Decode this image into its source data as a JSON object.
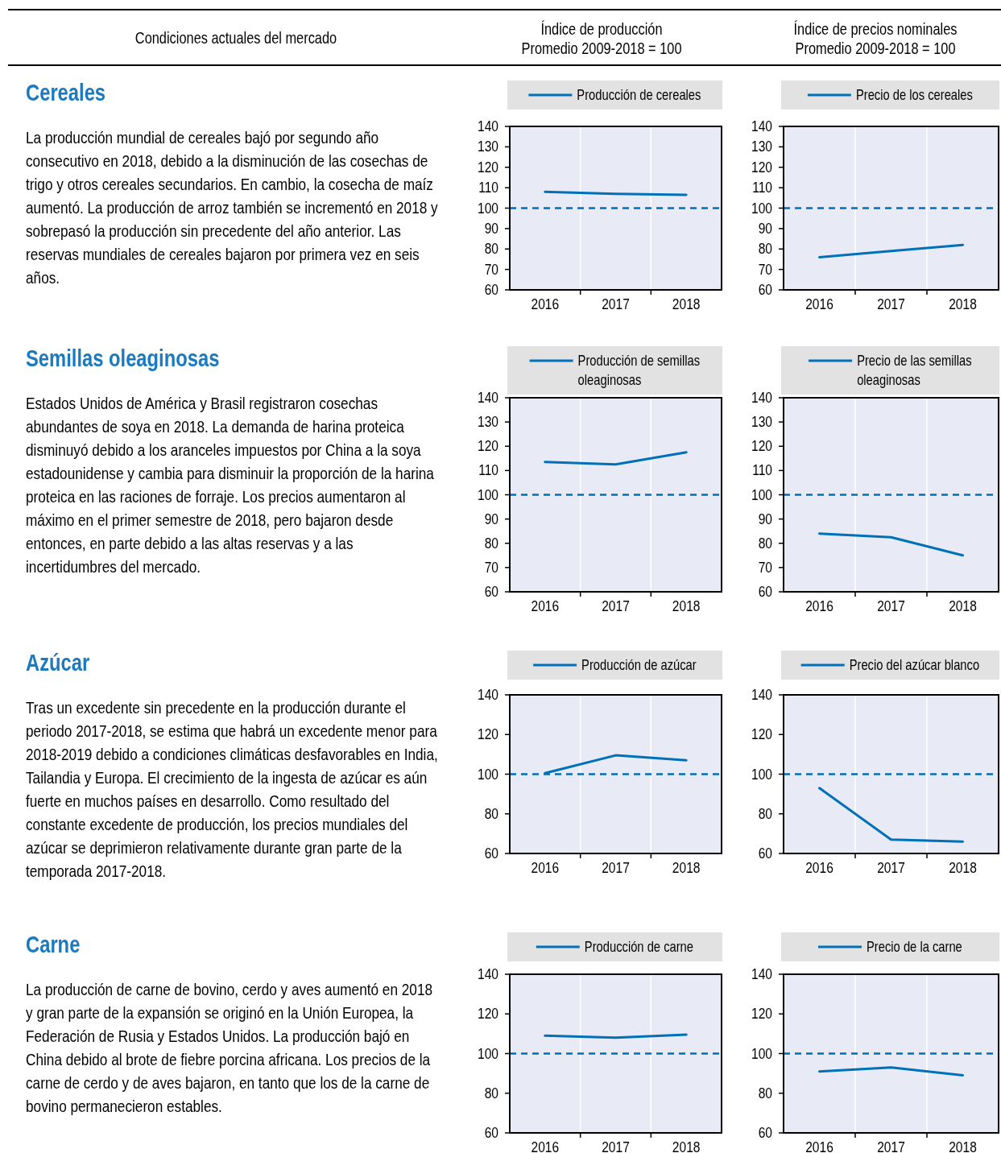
{
  "chart_data": [
    {
      "type": "other",
      "annotations": [
        "Condiciones actuales del mercado",
        "Índice de producción",
        "Promedio 2009-2018 = 100",
        "Índice de precios nominales",
        "Promedio 2009-2018 = 100"
      ]
    },
    {
      "type": "other",
      "title": "Cereales",
      "annotations": [
        "La producción mundial de cereales bajó por segundo año consecutivo en 2018, debido a la disminución de las cosechas de trigo y otros cereales secundarios. En cambio, la cosecha de maíz aumentó. La producción de arroz también se incrementó en 2018 y sobrepasó la producción sin precedente del año anterior. Las reservas mundiales de cereales bajaron por primera vez en seis años."
      ]
    },
    {
      "type": "line",
      "categories": [
        "2016",
        "2017",
        "2018"
      ],
      "series": [
        {
          "name": "Producción de cereales",
          "color": "#0070b8",
          "values": [
            108,
            107,
            106.5
          ]
        }
      ],
      "ylim": [
        60,
        140
      ],
      "yticks": [
        60,
        70,
        80,
        90,
        100,
        110,
        120,
        130,
        140
      ],
      "grid": "x",
      "legend": "top",
      "ref_lines": [
        {
          "axis": "y",
          "value": 100,
          "color": "#0070b8",
          "line_style": "dashed"
        }
      ]
    },
    {
      "type": "line",
      "categories": [
        "2016",
        "2017",
        "2018"
      ],
      "series": [
        {
          "name": "Precio de los cereales",
          "color": "#0070b8",
          "values": [
            76,
            79,
            82
          ]
        }
      ],
      "ylim": [
        60,
        140
      ],
      "yticks": [
        60,
        70,
        80,
        90,
        100,
        110,
        120,
        130,
        140
      ],
      "grid": "x",
      "legend": "top",
      "ref_lines": [
        {
          "axis": "y",
          "value": 100,
          "color": "#0070b8",
          "line_style": "dashed"
        }
      ]
    },
    {
      "type": "other",
      "title": "Semillas oleaginosas",
      "annotations": [
        "Estados Unidos de América y Brasil registraron cosechas abundantes de soya en 2018. La demanda de harina proteica disminuyó debido a los aranceles impuestos por China a la soya estadounidense y cambia para disminuir la proporción de la harina proteica en las raciones de forraje. Los precios aumentaron al máximo en el primer semestre de 2018, pero bajaron desde entonces, en parte debido a las altas reservas y a las incertidumbres del mercado."
      ]
    },
    {
      "type": "line",
      "categories": [
        "2016",
        "2017",
        "2018"
      ],
      "series": [
        {
          "name": "Producción de semillas oleaginosas",
          "color": "#0070b8",
          "values": [
            113.5,
            112.5,
            117.5
          ]
        }
      ],
      "ylim": [
        60,
        140
      ],
      "yticks": [
        60,
        70,
        80,
        90,
        100,
        110,
        120,
        130,
        140
      ],
      "grid": "x",
      "legend": "top",
      "ref_lines": [
        {
          "axis": "y",
          "value": 100,
          "color": "#0070b8",
          "line_style": "dashed"
        }
      ]
    },
    {
      "type": "line",
      "categories": [
        "2016",
        "2017",
        "2018"
      ],
      "series": [
        {
          "name": "Precio de las semillas oleaginosas",
          "color": "#0070b8",
          "values": [
            84,
            82.5,
            75
          ]
        }
      ],
      "ylim": [
        60,
        140
      ],
      "yticks": [
        60,
        70,
        80,
        90,
        100,
        110,
        120,
        130,
        140
      ],
      "grid": "x",
      "legend": "top",
      "ref_lines": [
        {
          "axis": "y",
          "value": 100,
          "color": "#0070b8",
          "line_style": "dashed"
        }
      ]
    },
    {
      "type": "other",
      "title": "Azúcar",
      "annotations": [
        "Tras un excedente sin precedente en la producción durante el periodo 2017-2018, se estima que habrá un excedente menor para 2018-2019 debido a condiciones climáticas desfavorables en India, Tailandia y Europa. El crecimiento de la ingesta de azúcar es aún fuerte en muchos países en desarrollo. Como resultado del constante excedente de producción, los precios mundiales del azúcar se deprimieron relativamente durante gran parte de la temporada 2017-2018."
      ]
    },
    {
      "type": "line",
      "categories": [
        "2016",
        "2017",
        "2018"
      ],
      "series": [
        {
          "name": "Producción de azúcar",
          "color": "#0070b8",
          "values": [
            100.5,
            109.5,
            107
          ]
        }
      ],
      "ylim": [
        60,
        140
      ],
      "yticks": [
        60,
        80,
        100,
        120,
        140
      ],
      "grid": "x",
      "legend": "top",
      "ref_lines": [
        {
          "axis": "y",
          "value": 100,
          "color": "#0070b8",
          "line_style": "dashed"
        }
      ]
    },
    {
      "type": "line",
      "categories": [
        "2016",
        "2017",
        "2018"
      ],
      "series": [
        {
          "name": "Precio del azúcar blanco",
          "color": "#0070b8",
          "values": [
            93,
            67,
            66
          ]
        }
      ],
      "ylim": [
        60,
        140
      ],
      "yticks": [
        60,
        80,
        100,
        120,
        140
      ],
      "grid": "x",
      "legend": "top",
      "ref_lines": [
        {
          "axis": "y",
          "value": 100,
          "color": "#0070b8",
          "line_style": "dashed"
        }
      ]
    },
    {
      "type": "other",
      "title": "Carne",
      "annotations": [
        "La producción de carne de bovino, cerdo y aves aumentó en 2018 y gran parte de la expansión se originó en la Unión Europea, la Federación de Rusia y Estados Unidos. La producción bajó en China debido al brote de fiebre porcina africana. Los precios de la carne de cerdo y de aves bajaron, en tanto que los de la carne de bovino permanecieron estables."
      ]
    },
    {
      "type": "line",
      "categories": [
        "2016",
        "2017",
        "2018"
      ],
      "series": [
        {
          "name": "Producción de carne",
          "color": "#0070b8",
          "values": [
            109,
            108,
            109.5
          ]
        }
      ],
      "ylim": [
        60,
        140
      ],
      "yticks": [
        60,
        80,
        100,
        120,
        140
      ],
      "grid": "x",
      "legend": "top",
      "ref_lines": [
        {
          "axis": "y",
          "value": 100,
          "color": "#0070b8",
          "line_style": "dashed"
        }
      ]
    },
    {
      "type": "line",
      "categories": [
        "2016",
        "2017",
        "2018"
      ],
      "series": [
        {
          "name": "Precio de la carne",
          "color": "#0070b8",
          "values": [
            91,
            93,
            89
          ]
        }
      ],
      "ylim": [
        60,
        140
      ],
      "yticks": [
        60,
        80,
        100,
        120,
        140
      ],
      "grid": "x",
      "legend": "top",
      "ref_lines": [
        {
          "axis": "y",
          "value": 100,
          "color": "#0070b8",
          "line_style": "dashed"
        }
      ]
    }
  ]
}
